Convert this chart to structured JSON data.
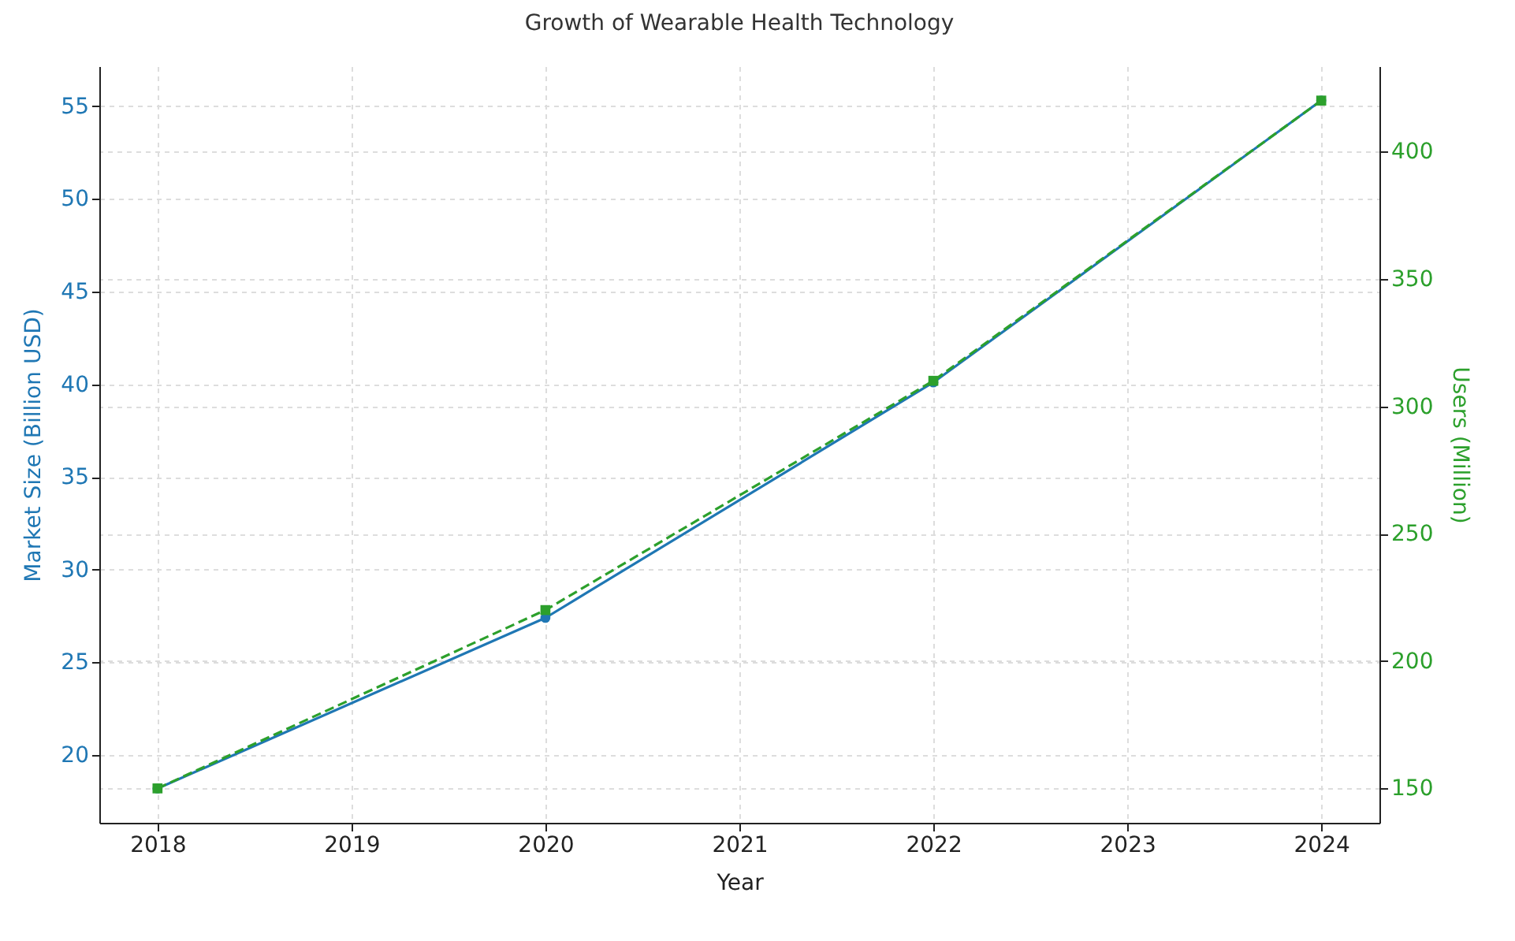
{
  "chart_data": {
    "type": "line",
    "title": "Growth of Wearable Health Technology",
    "xlabel": "Year",
    "ylabel": "Market Size (Billion USD)",
    "y2label": "Users (Million)",
    "x": [
      2018,
      2020,
      2022,
      2024
    ],
    "series": [
      {
        "color": "#1f77b4",
        "values": [
          18.2,
          27.4,
          40.1,
          55.3
        ],
        "marker": "circle",
        "line_style": "solid"
      },
      {
        "color": "#2ca02c",
        "values": [
          150,
          220,
          310,
          420
        ],
        "axis": "y2",
        "marker": "square",
        "line_style": "dashed"
      }
    ],
    "xlim": [
      2017.7,
      2024.3
    ],
    "xticks": [
      2018,
      2019,
      2020,
      2021,
      2022,
      2023,
      2024
    ],
    "ylim": [
      16.35,
      57.15
    ],
    "yticks": [
      20,
      25,
      30,
      35,
      40,
      45,
      50,
      55
    ],
    "y2lim": [
      136.5,
      433.5
    ],
    "y2ticks": [
      150,
      200,
      250,
      300,
      350,
      400
    ],
    "grid": true
  }
}
